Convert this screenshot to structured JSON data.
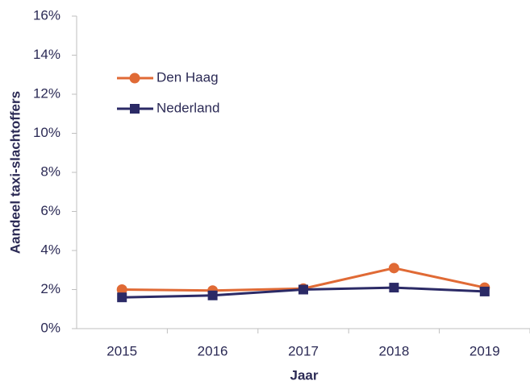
{
  "chart_data": {
    "type": "line",
    "x_label": "Jaar",
    "y_label": "Aandeel taxi-slachtoffers",
    "categories": [
      "2015",
      "2016",
      "2017",
      "2018",
      "2019"
    ],
    "series": [
      {
        "name": "Den Haag",
        "color": "#e06a35",
        "marker": "circle",
        "values": [
          2.0,
          1.95,
          2.05,
          3.1,
          2.1
        ]
      },
      {
        "name": "Nederland",
        "color": "#2b2a66",
        "marker": "square",
        "values": [
          1.6,
          1.7,
          2.0,
          2.1,
          1.9
        ]
      }
    ],
    "ylim": [
      0,
      16
    ],
    "yticks": [
      {
        "value": 0,
        "label": "0%"
      },
      {
        "value": 2,
        "label": "2%"
      },
      {
        "value": 4,
        "label": "4%"
      },
      {
        "value": 6,
        "label": "6%"
      },
      {
        "value": 8,
        "label": "8%"
      },
      {
        "value": 10,
        "label": "10%"
      },
      {
        "value": 12,
        "label": "12%"
      },
      {
        "value": 14,
        "label": "14%"
      },
      {
        "value": 16,
        "label": "16%"
      }
    ],
    "grid": false,
    "legend": "upper left"
  }
}
